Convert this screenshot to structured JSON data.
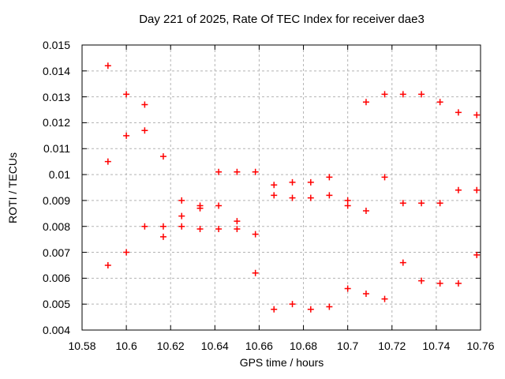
{
  "window": {
    "background": "#ffffff"
  },
  "chart_data": {
    "type": "scatter",
    "title": "Day 221 of 2025, Rate Of TEC Index for receiver dae3",
    "xlabel": "GPS time / hours",
    "ylabel": "ROTI / TECUs",
    "xlim": [
      10.58,
      10.76
    ],
    "ylim": [
      0.004,
      0.015
    ],
    "x_ticks": [
      10.58,
      10.6,
      10.62,
      10.64,
      10.66,
      10.68,
      10.7,
      10.72,
      10.74,
      10.76
    ],
    "x_tick_labels": [
      "10.58",
      "10.6",
      "10.62",
      "10.64",
      "10.66",
      "10.68",
      "10.7",
      "10.72",
      "10.74",
      "10.76"
    ],
    "y_ticks": [
      0.004,
      0.005,
      0.006,
      0.007,
      0.008,
      0.009,
      0.01,
      0.011,
      0.012,
      0.013,
      0.014,
      0.015
    ],
    "y_tick_labels": [
      "0.004",
      "0.005",
      "0.006",
      "0.007",
      "0.008",
      "0.009",
      "0.01",
      "0.011",
      "0.012",
      "0.013",
      "0.014",
      "0.015"
    ],
    "grid": true,
    "legend": "none",
    "marker": "plus",
    "marker_color": "#ff0000",
    "grid_color": "#b4b4b4",
    "frame_color": "#000000",
    "points": [
      [
        10.5917,
        0.0142
      ],
      [
        10.5917,
        0.0105
      ],
      [
        10.5917,
        0.0065
      ],
      [
        10.6,
        0.0131
      ],
      [
        10.6,
        0.0115
      ],
      [
        10.6,
        0.007
      ],
      [
        10.6083,
        0.0127
      ],
      [
        10.6083,
        0.0117
      ],
      [
        10.6083,
        0.008
      ],
      [
        10.6167,
        0.0107
      ],
      [
        10.6167,
        0.008
      ],
      [
        10.6167,
        0.0076
      ],
      [
        10.625,
        0.009
      ],
      [
        10.625,
        0.0084
      ],
      [
        10.625,
        0.008
      ],
      [
        10.6333,
        0.0088
      ],
      [
        10.6333,
        0.0087
      ],
      [
        10.6333,
        0.0079
      ],
      [
        10.6417,
        0.0101
      ],
      [
        10.6417,
        0.0088
      ],
      [
        10.6417,
        0.0079
      ],
      [
        10.65,
        0.0101
      ],
      [
        10.65,
        0.0082
      ],
      [
        10.65,
        0.0079
      ],
      [
        10.6583,
        0.0101
      ],
      [
        10.6583,
        0.0077
      ],
      [
        10.6583,
        0.0062
      ],
      [
        10.6667,
        0.0096
      ],
      [
        10.6667,
        0.0092
      ],
      [
        10.6667,
        0.0048
      ],
      [
        10.675,
        0.0097
      ],
      [
        10.675,
        0.0091
      ],
      [
        10.675,
        0.005
      ],
      [
        10.6833,
        0.0097
      ],
      [
        10.6833,
        0.0091
      ],
      [
        10.6833,
        0.0048
      ],
      [
        10.6917,
        0.0099
      ],
      [
        10.6917,
        0.0092
      ],
      [
        10.6917,
        0.0049
      ],
      [
        10.7,
        0.009
      ],
      [
        10.7,
        0.0088
      ],
      [
        10.7,
        0.0056
      ],
      [
        10.7083,
        0.0128
      ],
      [
        10.7083,
        0.0086
      ],
      [
        10.7083,
        0.0054
      ],
      [
        10.7167,
        0.0131
      ],
      [
        10.7167,
        0.0099
      ],
      [
        10.7167,
        0.0052
      ],
      [
        10.725,
        0.0131
      ],
      [
        10.725,
        0.0089
      ],
      [
        10.725,
        0.0066
      ],
      [
        10.7333,
        0.0131
      ],
      [
        10.7333,
        0.0089
      ],
      [
        10.7333,
        0.0059
      ],
      [
        10.7417,
        0.0128
      ],
      [
        10.7417,
        0.0089
      ],
      [
        10.7417,
        0.0058
      ],
      [
        10.75,
        0.0124
      ],
      [
        10.75,
        0.0094
      ],
      [
        10.75,
        0.0058
      ],
      [
        10.7583,
        0.0123
      ],
      [
        10.7583,
        0.0094
      ],
      [
        10.7583,
        0.0069
      ]
    ]
  }
}
